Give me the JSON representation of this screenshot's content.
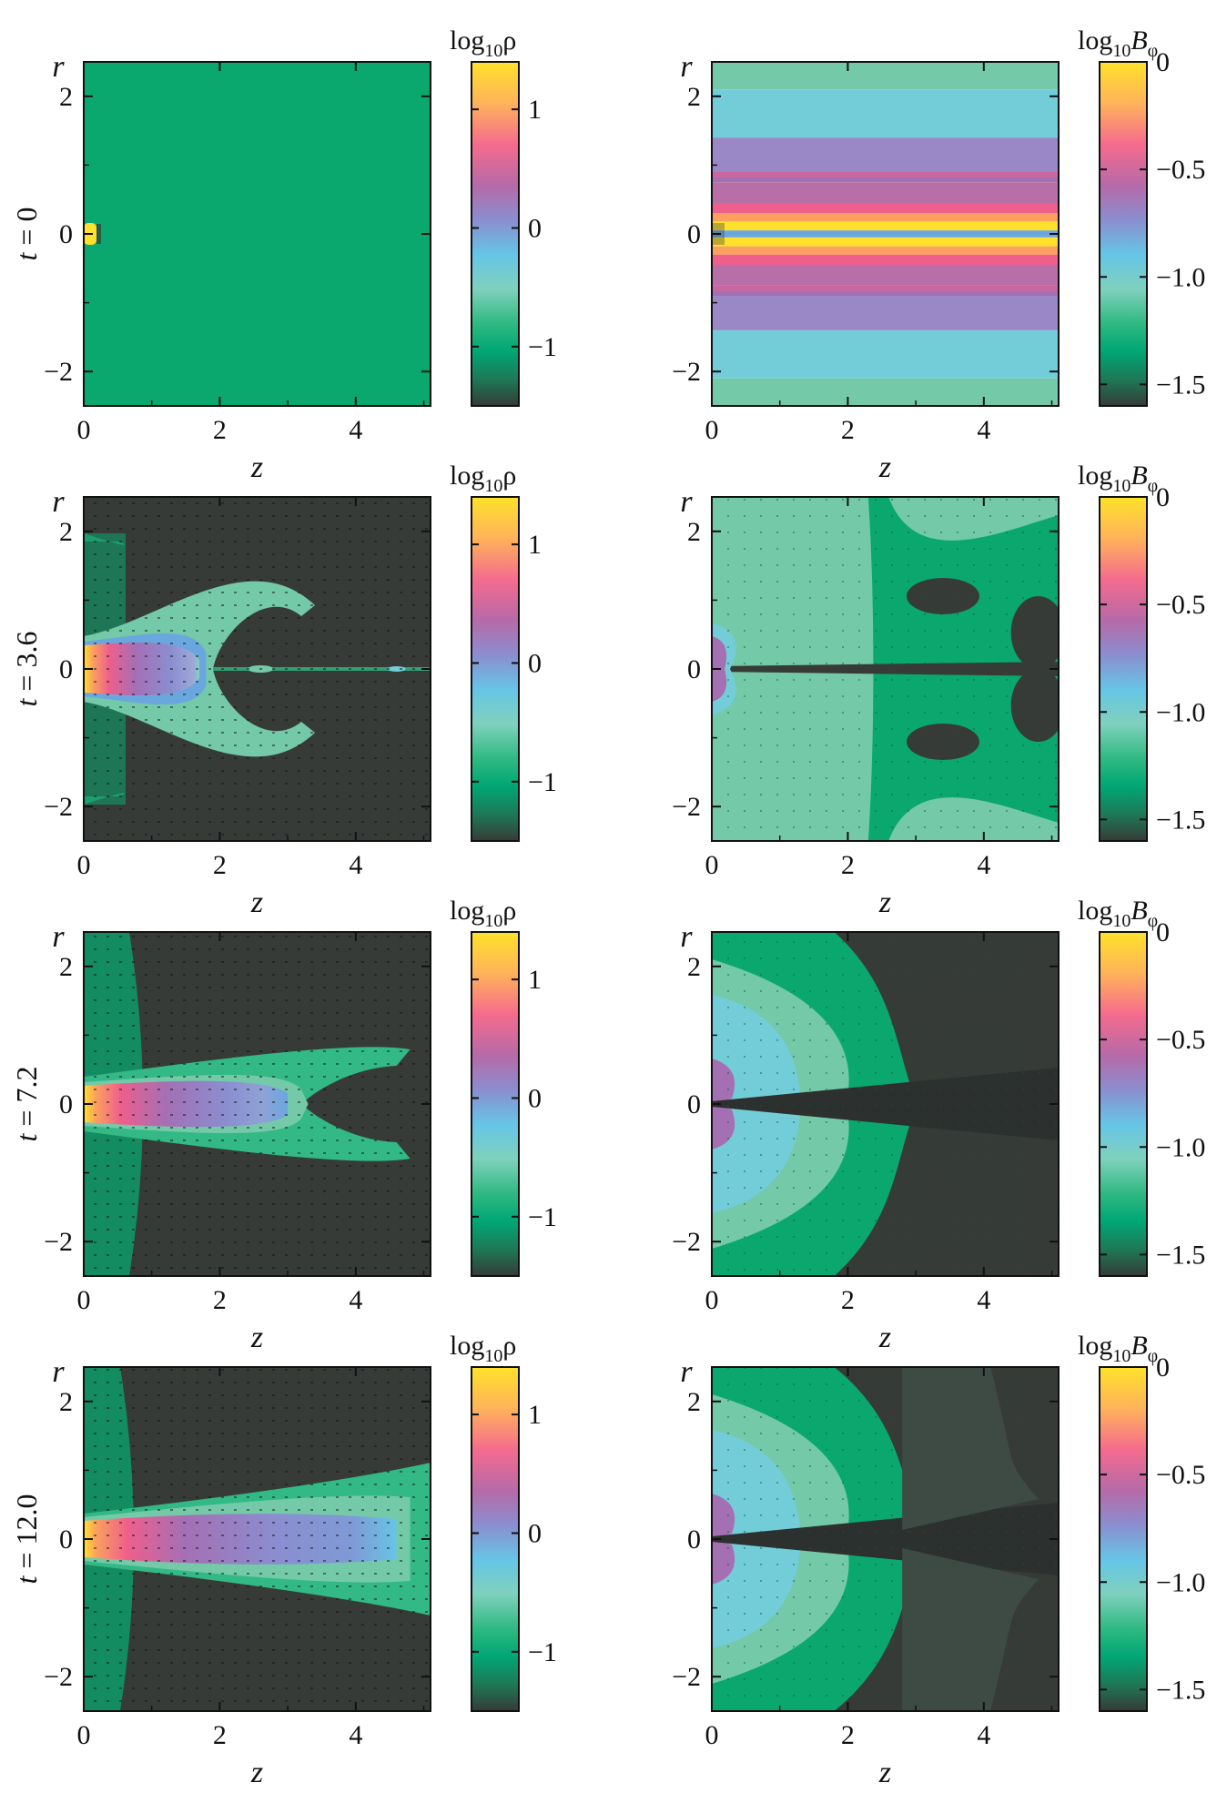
{
  "chart_data": {
    "type": "heatmap",
    "description_labels": {
      "xlabel": "z",
      "ylabel": "r"
    },
    "xlim": [
      0,
      5.1
    ],
    "ylim": [
      -2.5,
      2.5
    ],
    "x_ticks": [
      "0",
      "2",
      "4"
    ],
    "y_ticks": [
      "2",
      "0",
      "−2"
    ],
    "rows": [
      {
        "time_label": "t = 0"
      },
      {
        "time_label": "t = 3.6"
      },
      {
        "time_label": "t = 7.2"
      },
      {
        "time_label": "t = 12.0"
      }
    ],
    "columns": [
      {
        "quantity": "log10ρ",
        "colorbar_title_base": "log",
        "colorbar_title_sub": "10",
        "colorbar_title_var": "ρ",
        "colorbar_range": [
          -1.5,
          1.4
        ],
        "colorbar_ticks": [
          "1",
          "0",
          "−1"
        ],
        "colorbar_tick_values": [
          1,
          0,
          -1
        ]
      },
      {
        "quantity": "log10Bφ",
        "colorbar_title_base": "log",
        "colorbar_title_sub": "10",
        "colorbar_title_var": "B",
        "colorbar_title_subvar": "φ",
        "colorbar_range": [
          -1.6,
          0
        ],
        "colorbar_ticks": [
          "0",
          "−0.5",
          "−1.0",
          "−1.5"
        ],
        "colorbar_tick_values": [
          0,
          -0.5,
          -1.0,
          -1.5
        ]
      }
    ],
    "colormap": [
      "#ffe22a",
      "#ffb35a",
      "#f56b8e",
      "#a46fb5",
      "#8a8ed0",
      "#66c5e6",
      "#7fd1bd",
      "#2fb982",
      "#00a775",
      "#1d8a62",
      "#353b37"
    ],
    "colormap_note": "yellow at top, dark gray-green at bottom"
  },
  "colors": {
    "dark": "#363b38",
    "green": "#0aa86f",
    "mid_green": "#32b985",
    "light_green": "#74c9a8",
    "cyan": "#73cdd9",
    "blue": "#6aa7df",
    "lavender": "#9a88c6",
    "purple": "#a56fb4",
    "pink": "#ee5f8c",
    "orange": "#fba05e",
    "yellow": "#ffe02c"
  }
}
